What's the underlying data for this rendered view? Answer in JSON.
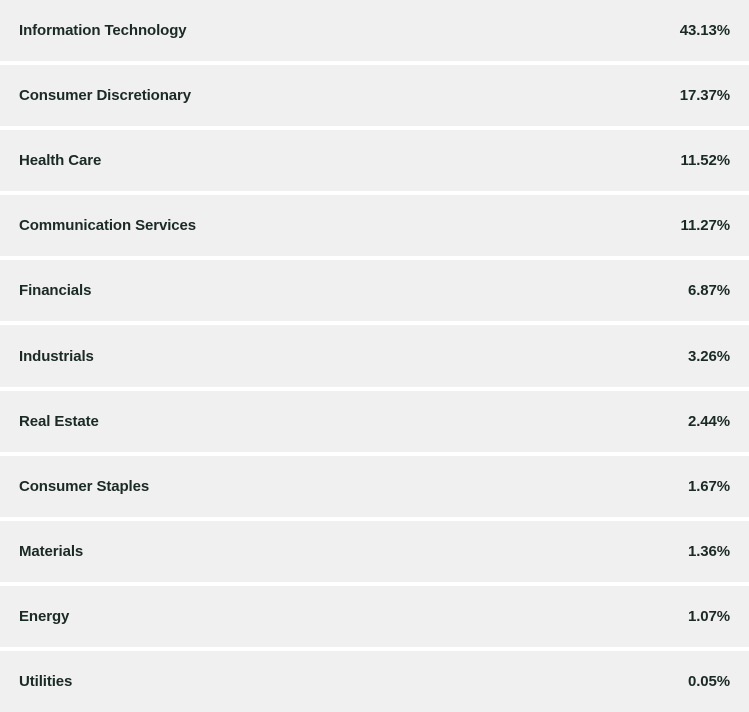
{
  "sectors": [
    {
      "name": "Information Technology",
      "weight": "43.13%"
    },
    {
      "name": "Consumer Discretionary",
      "weight": "17.37%"
    },
    {
      "name": "Health Care",
      "weight": "11.52%"
    },
    {
      "name": "Communication Services",
      "weight": "11.27%"
    },
    {
      "name": "Financials",
      "weight": "6.87%"
    },
    {
      "name": "Industrials",
      "weight": "3.26%"
    },
    {
      "name": "Real Estate",
      "weight": "2.44%"
    },
    {
      "name": "Consumer Staples",
      "weight": "1.67%"
    },
    {
      "name": "Materials",
      "weight": "1.36%"
    },
    {
      "name": "Energy",
      "weight": "1.07%"
    },
    {
      "name": "Utilities",
      "weight": "0.05%"
    }
  ],
  "colors": {
    "row_background": "#f0f0f0",
    "text": "#1a2a24",
    "divider": "#ffffff"
  }
}
